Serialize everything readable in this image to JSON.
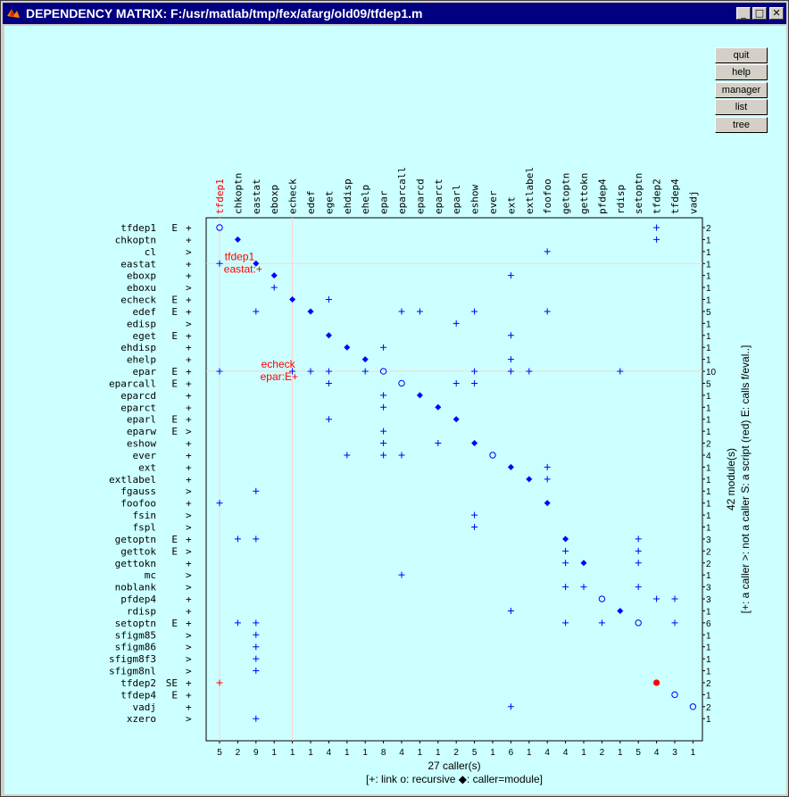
{
  "window": {
    "title": "DEPENDENCY MATRIX:   F:/usr/matlab/tmp/fex/afarg/old09/tfdep1.m",
    "controls": {
      "minimize": "_",
      "maximize": "□",
      "close": "✕"
    }
  },
  "buttons": {
    "quit": "quit",
    "help": "help",
    "manager": "manager",
    "list": "list",
    "tree": "tree"
  },
  "colors": {
    "background": "#ccffff",
    "blue": "#0000ff",
    "red": "#ff0000",
    "title_bar": "#000080"
  },
  "chart_data": {
    "type": "dependency-matrix",
    "columns": [
      "tfdep1",
      "chkoptn",
      "eastat",
      "eboxp",
      "echeck",
      "edef",
      "eget",
      "ehdisp",
      "ehelp",
      "epar",
      "eparcall",
      "eparcd",
      "eparct",
      "eparl",
      "eshow",
      "ever",
      "ext",
      "extlabel",
      "foofoo",
      "getoptn",
      "gettokn",
      "pfdep4",
      "rdisp",
      "setoptn",
      "tfdep2",
      "tfdep4",
      "vadj"
    ],
    "column_counts": [
      "5",
      "2",
      "9",
      "1",
      "1",
      "1",
      "4",
      "1",
      "1",
      "8",
      "4",
      "1",
      "1",
      "2",
      "5",
      "1",
      "6",
      "1",
      "4",
      "4",
      "1",
      "2",
      "1",
      "5",
      "4",
      "3",
      "1"
    ],
    "rows": [
      {
        "name": "tfdep1",
        "type": "E",
        "link": "+",
        "count": "2"
      },
      {
        "name": "chkoptn",
        "type": "",
        "link": "+",
        "count": "1"
      },
      {
        "name": "cl",
        "type": "",
        "link": ">",
        "count": "1"
      },
      {
        "name": "eastat",
        "type": "",
        "link": "+",
        "count": "1"
      },
      {
        "name": "eboxp",
        "type": "",
        "link": "+",
        "count": "1"
      },
      {
        "name": "eboxu",
        "type": "",
        "link": ">",
        "count": "1"
      },
      {
        "name": "echeck",
        "type": "E",
        "link": "+",
        "count": "1"
      },
      {
        "name": "edef",
        "type": "E",
        "link": "+",
        "count": "5"
      },
      {
        "name": "edisp",
        "type": "",
        "link": ">",
        "count": "1"
      },
      {
        "name": "eget",
        "type": "E",
        "link": "+",
        "count": "1"
      },
      {
        "name": "ehdisp",
        "type": "",
        "link": "+",
        "count": "1"
      },
      {
        "name": "ehelp",
        "type": "",
        "link": "+",
        "count": "1"
      },
      {
        "name": "epar",
        "type": "E",
        "link": "+",
        "count": "10"
      },
      {
        "name": "eparcall",
        "type": "E",
        "link": "+",
        "count": "5"
      },
      {
        "name": "eparcd",
        "type": "",
        "link": "+",
        "count": "1"
      },
      {
        "name": "eparct",
        "type": "",
        "link": "+",
        "count": "1"
      },
      {
        "name": "eparl",
        "type": "E",
        "link": "+",
        "count": "1"
      },
      {
        "name": "eparw",
        "type": "E",
        "link": ">",
        "count": "1"
      },
      {
        "name": "eshow",
        "type": "",
        "link": "+",
        "count": "2"
      },
      {
        "name": "ever",
        "type": "",
        "link": "+",
        "count": "4"
      },
      {
        "name": "ext",
        "type": "",
        "link": "+",
        "count": "1"
      },
      {
        "name": "extlabel",
        "type": "",
        "link": "+",
        "count": "1"
      },
      {
        "name": "fgauss",
        "type": "",
        "link": ">",
        "count": "1"
      },
      {
        "name": "foofoo",
        "type": "",
        "link": "+",
        "count": "1"
      },
      {
        "name": "fsin",
        "type": "",
        "link": ">",
        "count": "1"
      },
      {
        "name": "fspl",
        "type": "",
        "link": ">",
        "count": "1"
      },
      {
        "name": "getoptn",
        "type": "E",
        "link": "+",
        "count": "3"
      },
      {
        "name": "gettok",
        "type": "E",
        "link": ">",
        "count": "2"
      },
      {
        "name": "gettokn",
        "type": "",
        "link": "+",
        "count": "2"
      },
      {
        "name": "mc",
        "type": "",
        "link": ">",
        "count": "1"
      },
      {
        "name": "noblank",
        "type": "",
        "link": ">",
        "count": "3"
      },
      {
        "name": "pfdep4",
        "type": "",
        "link": "+",
        "count": "3"
      },
      {
        "name": "rdisp",
        "type": "",
        "link": "+",
        "count": "1"
      },
      {
        "name": "setoptn",
        "type": "E",
        "link": "+",
        "count": "6"
      },
      {
        "name": "sfigm85",
        "type": "",
        "link": ">",
        "count": "1"
      },
      {
        "name": "sfigm86",
        "type": "",
        "link": ">",
        "count": "1"
      },
      {
        "name": "sfigm8f3",
        "type": "",
        "link": ">",
        "count": "1"
      },
      {
        "name": "sfigm8nl",
        "type": "",
        "link": ">",
        "count": "1"
      },
      {
        "name": "tfdep2",
        "type": "SE",
        "link": "+",
        "count": "2"
      },
      {
        "name": "tfdep4",
        "type": "E",
        "link": "+",
        "count": "1"
      },
      {
        "name": "vadj",
        "type": "",
        "link": "+",
        "count": "2"
      },
      {
        "name": "xzero",
        "type": "",
        "link": ">",
        "count": "1"
      }
    ],
    "cells": [
      {
        "row": 0,
        "col": 0,
        "m": "o"
      },
      {
        "row": 0,
        "col": 24,
        "m": "+"
      },
      {
        "row": 1,
        "col": 1,
        "m": "d"
      },
      {
        "row": 1,
        "col": 24,
        "m": "+"
      },
      {
        "row": 2,
        "col": 18,
        "m": "+"
      },
      {
        "row": 3,
        "col": 0,
        "m": "+"
      },
      {
        "row": 3,
        "col": 2,
        "m": "d"
      },
      {
        "row": 4,
        "col": 3,
        "m": "d"
      },
      {
        "row": 4,
        "col": 16,
        "m": "+"
      },
      {
        "row": 5,
        "col": 3,
        "m": "+"
      },
      {
        "row": 6,
        "col": 4,
        "m": "d"
      },
      {
        "row": 6,
        "col": 6,
        "m": "+"
      },
      {
        "row": 7,
        "col": 2,
        "m": "+"
      },
      {
        "row": 7,
        "col": 5,
        "m": "d"
      },
      {
        "row": 7,
        "col": 10,
        "m": "+"
      },
      {
        "row": 7,
        "col": 11,
        "m": "+"
      },
      {
        "row": 7,
        "col": 14,
        "m": "+"
      },
      {
        "row": 7,
        "col": 18,
        "m": "+"
      },
      {
        "row": 8,
        "col": 13,
        "m": "+"
      },
      {
        "row": 9,
        "col": 6,
        "m": "d"
      },
      {
        "row": 9,
        "col": 16,
        "m": "+"
      },
      {
        "row": 10,
        "col": 7,
        "m": "d"
      },
      {
        "row": 10,
        "col": 9,
        "m": "+"
      },
      {
        "row": 11,
        "col": 8,
        "m": "d"
      },
      {
        "row": 11,
        "col": 16,
        "m": "+"
      },
      {
        "row": 12,
        "col": 0,
        "m": "+"
      },
      {
        "row": 12,
        "col": 4,
        "m": "+"
      },
      {
        "row": 12,
        "col": 5,
        "m": "+"
      },
      {
        "row": 12,
        "col": 6,
        "m": "+"
      },
      {
        "row": 12,
        "col": 8,
        "m": "+"
      },
      {
        "row": 12,
        "col": 9,
        "m": "o"
      },
      {
        "row": 12,
        "col": 14,
        "m": "+"
      },
      {
        "row": 12,
        "col": 16,
        "m": "+"
      },
      {
        "row": 12,
        "col": 17,
        "m": "+"
      },
      {
        "row": 12,
        "col": 22,
        "m": "+"
      },
      {
        "row": 13,
        "col": 6,
        "m": "+"
      },
      {
        "row": 13,
        "col": 10,
        "m": "o"
      },
      {
        "row": 13,
        "col": 13,
        "m": "+"
      },
      {
        "row": 13,
        "col": 14,
        "m": "+"
      },
      {
        "row": 14,
        "col": 9,
        "m": "+"
      },
      {
        "row": 14,
        "col": 11,
        "m": "d"
      },
      {
        "row": 15,
        "col": 9,
        "m": "+"
      },
      {
        "row": 15,
        "col": 12,
        "m": "d"
      },
      {
        "row": 16,
        "col": 6,
        "m": "+"
      },
      {
        "row": 16,
        "col": 13,
        "m": "d"
      },
      {
        "row": 17,
        "col": 9,
        "m": "+"
      },
      {
        "row": 18,
        "col": 9,
        "m": "+"
      },
      {
        "row": 18,
        "col": 12,
        "m": "+"
      },
      {
        "row": 18,
        "col": 14,
        "m": "d"
      },
      {
        "row": 19,
        "col": 7,
        "m": "+"
      },
      {
        "row": 19,
        "col": 9,
        "m": "+"
      },
      {
        "row": 19,
        "col": 10,
        "m": "+"
      },
      {
        "row": 19,
        "col": 15,
        "m": "o"
      },
      {
        "row": 20,
        "col": 16,
        "m": "d"
      },
      {
        "row": 20,
        "col": 18,
        "m": "+"
      },
      {
        "row": 21,
        "col": 17,
        "m": "d"
      },
      {
        "row": 21,
        "col": 18,
        "m": "+"
      },
      {
        "row": 22,
        "col": 2,
        "m": "+"
      },
      {
        "row": 23,
        "col": 0,
        "m": "+"
      },
      {
        "row": 23,
        "col": 18,
        "m": "d"
      },
      {
        "row": 24,
        "col": 14,
        "m": "+"
      },
      {
        "row": 25,
        "col": 14,
        "m": "+"
      },
      {
        "row": 26,
        "col": 1,
        "m": "+"
      },
      {
        "row": 26,
        "col": 2,
        "m": "+"
      },
      {
        "row": 26,
        "col": 19,
        "m": "d"
      },
      {
        "row": 26,
        "col": 23,
        "m": "+"
      },
      {
        "row": 27,
        "col": 19,
        "m": "+"
      },
      {
        "row": 27,
        "col": 23,
        "m": "+"
      },
      {
        "row": 28,
        "col": 19,
        "m": "+"
      },
      {
        "row": 28,
        "col": 20,
        "m": "d"
      },
      {
        "row": 28,
        "col": 23,
        "m": "+"
      },
      {
        "row": 29,
        "col": 10,
        "m": "+"
      },
      {
        "row": 30,
        "col": 19,
        "m": "+"
      },
      {
        "row": 30,
        "col": 20,
        "m": "+"
      },
      {
        "row": 30,
        "col": 23,
        "m": "+"
      },
      {
        "row": 31,
        "col": 21,
        "m": "o"
      },
      {
        "row": 31,
        "col": 24,
        "m": "+"
      },
      {
        "row": 31,
        "col": 25,
        "m": "+"
      },
      {
        "row": 32,
        "col": 16,
        "m": "+"
      },
      {
        "row": 32,
        "col": 22,
        "m": "d"
      },
      {
        "row": 33,
        "col": 1,
        "m": "+"
      },
      {
        "row": 33,
        "col": 2,
        "m": "+"
      },
      {
        "row": 33,
        "col": 19,
        "m": "+"
      },
      {
        "row": 33,
        "col": 21,
        "m": "+"
      },
      {
        "row": 33,
        "col": 23,
        "m": "o"
      },
      {
        "row": 33,
        "col": 25,
        "m": "+"
      },
      {
        "row": 34,
        "col": 2,
        "m": "+"
      },
      {
        "row": 35,
        "col": 2,
        "m": "+"
      },
      {
        "row": 36,
        "col": 2,
        "m": "+"
      },
      {
        "row": 37,
        "col": 2,
        "m": "+"
      },
      {
        "row": 38,
        "col": 0,
        "m": "+",
        "red": true
      },
      {
        "row": 38,
        "col": 24,
        "m": "dot",
        "red": true
      },
      {
        "row": 39,
        "col": 25,
        "m": "o"
      },
      {
        "row": 40,
        "col": 16,
        "m": "+"
      },
      {
        "row": 40,
        "col": 26,
        "m": "o"
      },
      {
        "row": 41,
        "col": 2,
        "m": "+"
      }
    ],
    "highlight_columns": [
      0,
      4
    ],
    "highlight_rows": [
      3,
      12
    ],
    "script_columns": [
      0
    ],
    "annotations": [
      {
        "line1": "tfdep1",
        "line2": "eastat:+",
        "row": 3,
        "col": 2
      },
      {
        "line1": "echeck",
        "line2": "epar:E+",
        "row": 12,
        "col": 4
      }
    ],
    "xlabel": "27 caller(s)",
    "legend": "[+: link  o: recursive  ◆: caller=module]",
    "ylabel": "42 module(s)",
    "right_legend": "[+: a caller  >: not a caller  S: a script (red)  E: calls f/eval..]"
  }
}
